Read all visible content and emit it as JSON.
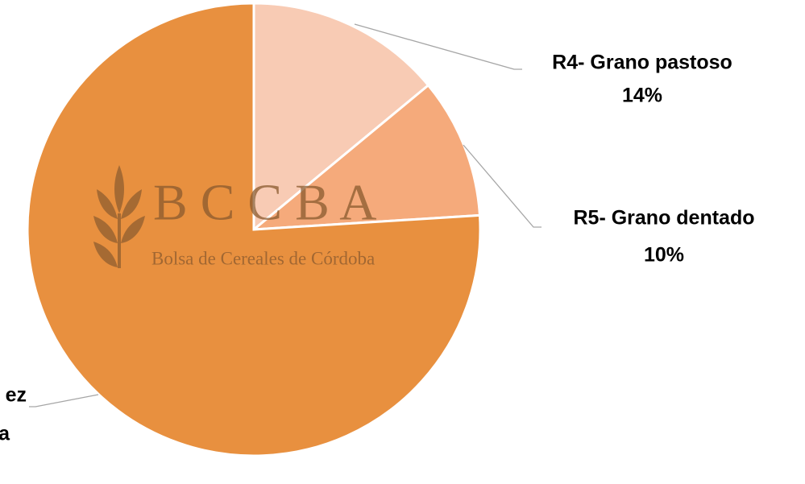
{
  "chart_data": {
    "type": "pie",
    "categories": [
      "R4- Grano pastoso",
      "R5- Grano dentado",
      "ez"
    ],
    "values": [
      14,
      10,
      76
    ],
    "value_labels": [
      "14%",
      "10%",
      null
    ],
    "annotations": [
      "a"
    ],
    "colors": [
      "#f8cbb4",
      "#f5aa7b",
      "#e8903f"
    ],
    "watermark": {
      "logo": "B C C B A",
      "text": "Bolsa de Cereales de Córdoba"
    }
  }
}
